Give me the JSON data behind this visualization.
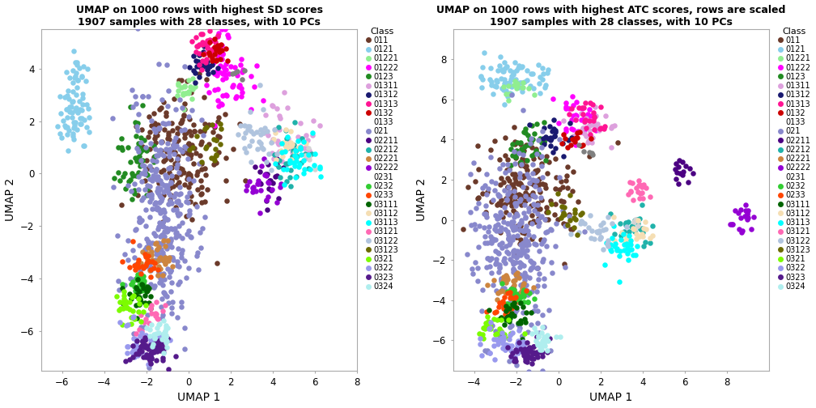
{
  "title1": "UMAP on 1000 rows with highest SD scores\n1907 samples with 28 classes, with 10 PCs",
  "title2": "UMAP on 1000 rows with highest ATC scores, rows are scaled\n1907 samples with 28 classes, with 10 PCs",
  "xlabel": "UMAP 1",
  "ylabel": "UMAP 2",
  "legend_title": "Class",
  "classes": [
    "011",
    "0121",
    "01221",
    "01222",
    "0123",
    "01311",
    "01312",
    "01313",
    "0132",
    "0133",
    "021",
    "02211",
    "02212",
    "02221",
    "02222",
    "0231",
    "0232",
    "0233",
    "03111",
    "03112",
    "03113",
    "03121",
    "03122",
    "03123",
    "0321",
    "0322",
    "0323",
    "0324"
  ],
  "colors": [
    "#6B3A2A",
    "#87CEEB",
    "#90EE90",
    "#FF00FF",
    "#228B22",
    "#DDA0DD",
    "#191970",
    "#FF1493",
    "#CC0000",
    "#808080",
    "#8888CC",
    "#4B0082",
    "#20B2AA",
    "#CD853F",
    "#9400D3",
    "#D3D3D3",
    "#32CD32",
    "#FF4500",
    "#006400",
    "#F5DEB3",
    "#00FFFF",
    "#FF69B4",
    "#B0C4DE",
    "#6B6B00",
    "#7CFC00",
    "#9999EE",
    "#551A8B",
    "#AFEEEE"
  ],
  "xlim1": [
    -7,
    8
  ],
  "ylim1": [
    -7.5,
    5.5
  ],
  "xlim2": [
    -5,
    10
  ],
  "ylim2": [
    -7.5,
    9.5
  ],
  "xticks1": [
    -6,
    -4,
    -2,
    0,
    2,
    4,
    6,
    8
  ],
  "yticks1": [
    -6,
    -4,
    -2,
    0,
    2,
    4
  ],
  "xticks2": [
    -4,
    -2,
    0,
    2,
    4,
    6,
    8
  ],
  "yticks2": [
    -6,
    -4,
    -2,
    0,
    2,
    4,
    6,
    8
  ],
  "background_color": "#FFFFFF",
  "panel_bg": "#FFFFFF",
  "point_size": 22,
  "point_alpha": 1.0
}
